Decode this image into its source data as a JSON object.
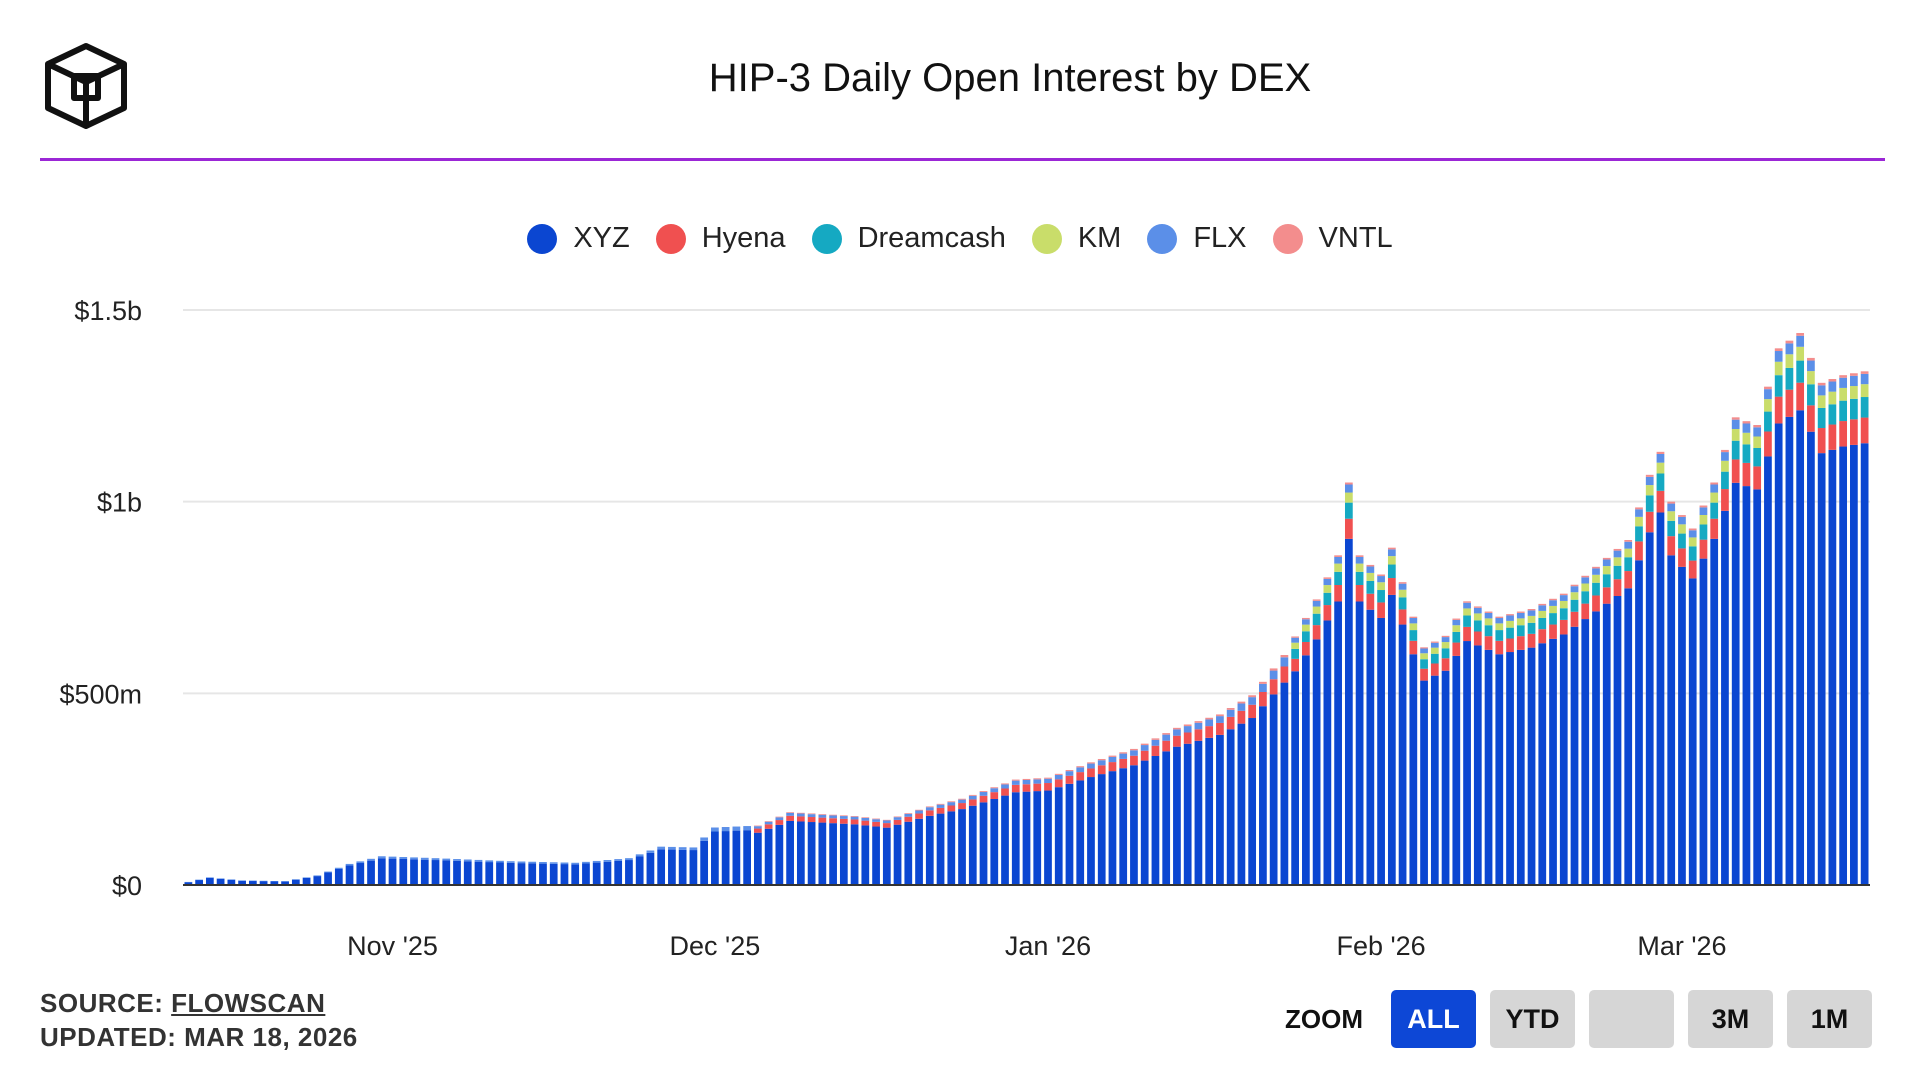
{
  "title": "HIP-3 Daily Open Interest by DEX",
  "legend": [
    {
      "name": "XYZ",
      "color": "#0b46d1"
    },
    {
      "name": "Hyena",
      "color": "#f05050"
    },
    {
      "name": "Dreamcash",
      "color": "#15a9c2"
    },
    {
      "name": "KM",
      "color": "#c9dd6a"
    },
    {
      "name": "FLX",
      "color": "#5b8fe8"
    },
    {
      "name": "VNTL",
      "color": "#f38d8d"
    }
  ],
  "divider_color": "#9b27d6",
  "footer": {
    "source_label": "SOURCE:",
    "source_link": "FLOWSCAN",
    "updated": "UPDATED: MAR 18, 2026"
  },
  "zoom": {
    "label": "ZOOM",
    "buttons": [
      "ALL",
      "YTD",
      "",
      "3M",
      "1M"
    ],
    "active": "ALL"
  },
  "chart_data": {
    "type": "bar",
    "stacked": true,
    "title": "HIP-3 Daily Open Interest by DEX",
    "y_unit": "USD",
    "ylim": [
      0,
      1500000000
    ],
    "y_ticks": [
      {
        "value": 0,
        "label": "$0"
      },
      {
        "value": 500000000,
        "label": "$500m"
      },
      {
        "value": 1000000000,
        "label": "$1b"
      },
      {
        "value": 1500000000,
        "label": "$1.5b"
      }
    ],
    "x_ticks": [
      {
        "date": "2025-11-01",
        "label": "Nov '25"
      },
      {
        "date": "2025-12-01",
        "label": "Dec '25"
      },
      {
        "date": "2026-01-01",
        "label": "Jan '26"
      },
      {
        "date": "2026-02-01",
        "label": "Feb '26"
      },
      {
        "date": "2026-03-01",
        "label": "Mar '26"
      }
    ],
    "x_start": "2025-10-13",
    "x_end": "2026-03-18",
    "grid": true,
    "legend_position": "top",
    "total_key_points_millions": [
      [
        "2025-10-13",
        8
      ],
      [
        "2025-10-15",
        20
      ],
      [
        "2025-10-18",
        12
      ],
      [
        "2025-10-22",
        10
      ],
      [
        "2025-10-25",
        25
      ],
      [
        "2025-10-28",
        55
      ],
      [
        "2025-10-31",
        75
      ],
      [
        "2025-11-05",
        70
      ],
      [
        "2025-11-12",
        62
      ],
      [
        "2025-11-18",
        58
      ],
      [
        "2025-11-23",
        70
      ],
      [
        "2025-11-26",
        100
      ],
      [
        "2025-11-29",
        98
      ],
      [
        "2025-12-01",
        150
      ],
      [
        "2025-12-05",
        155
      ],
      [
        "2025-12-08",
        190
      ],
      [
        "2025-12-14",
        180
      ],
      [
        "2025-12-17",
        170
      ],
      [
        "2025-12-21",
        205
      ],
      [
        "2025-12-24",
        225
      ],
      [
        "2025-12-29",
        275
      ],
      [
        "2026-01-01",
        280
      ],
      [
        "2026-01-05",
        320
      ],
      [
        "2026-01-09",
        355
      ],
      [
        "2026-01-13",
        410
      ],
      [
        "2026-01-17",
        445
      ],
      [
        "2026-01-20",
        495
      ],
      [
        "2026-01-23",
        600
      ],
      [
        "2026-01-26",
        745
      ],
      [
        "2026-01-28",
        860
      ],
      [
        "2026-01-29",
        1050
      ],
      [
        "2026-01-30",
        860
      ],
      [
        "2026-02-01",
        810
      ],
      [
        "2026-02-02",
        880
      ],
      [
        "2026-02-04",
        700
      ],
      [
        "2026-02-05",
        620
      ],
      [
        "2026-02-07",
        650
      ],
      [
        "2026-02-09",
        740
      ],
      [
        "2026-02-12",
        700
      ],
      [
        "2026-02-15",
        720
      ],
      [
        "2026-02-18",
        760
      ],
      [
        "2026-02-21",
        830
      ],
      [
        "2026-02-24",
        900
      ],
      [
        "2026-02-26",
        1070
      ],
      [
        "2026-02-27",
        1130
      ],
      [
        "2026-02-28",
        1000
      ],
      [
        "2026-03-02",
        930
      ],
      [
        "2026-03-04",
        1050
      ],
      [
        "2026-03-06",
        1220
      ],
      [
        "2026-03-08",
        1200
      ],
      [
        "2026-03-10",
        1400
      ],
      [
        "2026-03-12",
        1440
      ],
      [
        "2026-03-14",
        1310
      ],
      [
        "2026-03-16",
        1330
      ],
      [
        "2026-03-18",
        1340
      ]
    ],
    "series_share_notes": "XYZ is the dominant series; Hyena, Dreamcash, KM, FLX and VNTL form thin stacked segments on top, growing after late January 2026."
  }
}
